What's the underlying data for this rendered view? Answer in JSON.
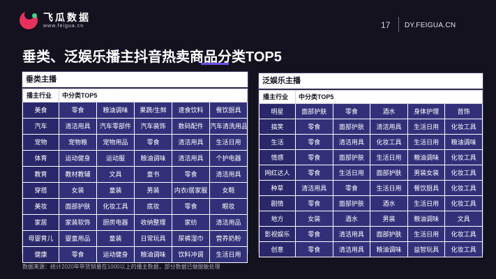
{
  "header": {
    "logo_cn": "飞瓜数据",
    "logo_url": "www.feigua.cn",
    "page_number": "17",
    "site": "DY.FEIGUA.CN"
  },
  "title": "垂类、泛娱乐播主抖音热卖商品分类TOP5",
  "left": {
    "panel_title": "垂类主播",
    "col_industry": "播主行业",
    "col_category": "中分类TOP5",
    "rows": [
      {
        "industry": "美食",
        "items": [
          "零食",
          "粮油调味",
          "果蔬/生鲜",
          "速食饮料",
          "餐饮厨具"
        ]
      },
      {
        "industry": "汽车",
        "items": [
          "清洁用具",
          "汽车零部件",
          "汽车装饰",
          "数码配件",
          "汽车清洗用品"
        ]
      },
      {
        "industry": "宠物",
        "items": [
          "宠物粮",
          "宠物用品",
          "零食",
          "清洁用具",
          "生活日用"
        ]
      },
      {
        "industry": "体育",
        "items": [
          "运动健身",
          "运动服",
          "粮油调味",
          "清洁用具",
          "个护电器"
        ]
      },
      {
        "industry": "教育",
        "items": [
          "教材教辅",
          "文具",
          "童书",
          "零食",
          "清洁用具"
        ]
      },
      {
        "industry": "穿搭",
        "items": [
          "女装",
          "童装",
          "男装",
          "内衣/居家服",
          "女鞋"
        ]
      },
      {
        "industry": "美妆",
        "items": [
          "面部护肤",
          "化妆工具",
          "底妆",
          "零食",
          "眼妆"
        ]
      },
      {
        "industry": "家居",
        "items": [
          "家装软饰",
          "厨房电器",
          "收纳整理",
          "家纺",
          "清洁用品"
        ]
      },
      {
        "industry": "母婴育儿",
        "items": [
          "婴童用品",
          "童装",
          "日常玩具",
          "尿裤湿巾",
          "营养奶粉"
        ]
      },
      {
        "industry": "健康",
        "items": [
          "零食",
          "运动健身",
          "粮油调味",
          "饮料冲调",
          "生活日用"
        ]
      }
    ]
  },
  "right": {
    "panel_title": "泛娱乐主播",
    "col_industry": "播主行业",
    "col_category": "中分类TOP5",
    "rows": [
      {
        "industry": "明星",
        "items": [
          "面部护肤",
          "零食",
          "酒水",
          "身体护理",
          "首饰"
        ]
      },
      {
        "industry": "搞笑",
        "items": [
          "零食",
          "面部护肤",
          "清洁用具",
          "生活日用",
          "化妆工具"
        ]
      },
      {
        "industry": "生活",
        "items": [
          "零食",
          "清洁用具",
          "化妆工具",
          "生活日用",
          "粮油调味"
        ]
      },
      {
        "industry": "情感",
        "items": [
          "零食",
          "面部护肤",
          "生活日用",
          "粮油调味",
          "化妆工具"
        ]
      },
      {
        "industry": "网红达人",
        "items": [
          "零食",
          "生活日用",
          "面部护肤",
          "男装女装",
          "化妆工具"
        ]
      },
      {
        "industry": "种草",
        "items": [
          "清洁用具",
          "零食",
          "生活日用",
          "餐饮厨具",
          "化妆工具"
        ]
      },
      {
        "industry": "剧情",
        "items": [
          "零食",
          "面部护肤",
          "酒水",
          "生活日用",
          "化妆工具"
        ]
      },
      {
        "industry": "地方",
        "items": [
          "女装",
          "酒水",
          "男装",
          "粮油调味",
          "文具"
        ]
      },
      {
        "industry": "影视娱乐",
        "items": [
          "零食",
          "清洁用具",
          "面部护肤",
          "生活日用",
          "化妆工具"
        ]
      },
      {
        "industry": "创意",
        "items": [
          "零食",
          "清洁用具",
          "粮油调味",
          "益智玩具",
          "化妆工具"
        ]
      }
    ]
  },
  "footnote": "数据来源：统计2020年带货销量在1000以上的播主数据，部分数据已做脱敏处理"
}
